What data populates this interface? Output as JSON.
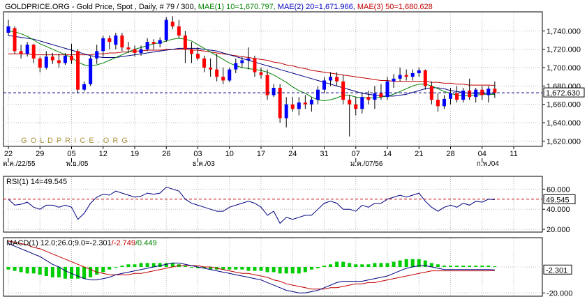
{
  "header": {
    "title_parts": [
      {
        "text": "GOLDPRICE.ORG - Gold Price, Spot , Daily, # 79 / 300,",
        "color": "#000000"
      },
      {
        "text": " MAE(1) 10=1,670.797,",
        "color": "#008000"
      },
      {
        "text": " MAE(2) 20=1,671.966,",
        "color": "#0000c0"
      },
      {
        "text": " MAE(3) 50=1,680.628",
        "color": "#c00000"
      }
    ]
  },
  "watermark": "G O L D P R I C E . O R G",
  "colors": {
    "up": "#0000ff",
    "down": "#ff0000",
    "mae10": "#008000",
    "mae20": "#000080",
    "mae50": "#c00000",
    "current_line": "#000080",
    "rsi_line": "#000080",
    "rsi_ref": "#c00000",
    "macd_line": "#000080",
    "signal_line": "#c00000",
    "hist": "#00cc00",
    "grid": "#b8b8b8"
  },
  "chart_data": [
    {
      "type": "candlestick",
      "title": "GOLDPRICE.ORG - Gold Price, Spot , Daily, # 79 / 300",
      "ylim": [
        1615,
        1760
      ],
      "yticks": [
        1620,
        1640,
        1660,
        1680,
        1700,
        1720,
        1740
      ],
      "ytick_labels": [
        "1,620.000",
        "1,640.000",
        "1,660.000",
        "1,680.000",
        "1,700.000",
        "1,720.000",
        "1,740.000"
      ],
      "current_value": 1672.63,
      "current_label": "1,672.630",
      "x_tick_labels": [
        "22",
        "29",
        "05",
        "12",
        "19",
        "26",
        "03",
        "10",
        "17",
        "24",
        "31",
        "07",
        "14",
        "21",
        "28",
        "04",
        "11"
      ],
      "x_tick_index": [
        0,
        5,
        10,
        15,
        20,
        25,
        30,
        35,
        40,
        45,
        50,
        55,
        60,
        65,
        70,
        75,
        80
      ],
      "period_labels": [
        "ต.ค./22/55",
        "พ.ย./05",
        "ธ.ค./03",
        "ม.ค./07/56",
        "ก.พ./04"
      ],
      "period_index": [
        0,
        10,
        30,
        55,
        75
      ],
      "candles": [
        {
          "o": 1738,
          "h": 1752,
          "l": 1735,
          "c": 1745
        },
        {
          "o": 1743,
          "h": 1745,
          "l": 1715,
          "c": 1718
        },
        {
          "o": 1718,
          "h": 1725,
          "l": 1710,
          "c": 1715
        },
        {
          "o": 1715,
          "h": 1728,
          "l": 1712,
          "c": 1725
        },
        {
          "o": 1725,
          "h": 1726,
          "l": 1705,
          "c": 1710
        },
        {
          "o": 1710,
          "h": 1712,
          "l": 1695,
          "c": 1700
        },
        {
          "o": 1700,
          "h": 1718,
          "l": 1698,
          "c": 1712
        },
        {
          "o": 1712,
          "h": 1716,
          "l": 1704,
          "c": 1708
        },
        {
          "o": 1708,
          "h": 1715,
          "l": 1700,
          "c": 1705
        },
        {
          "o": 1705,
          "h": 1716,
          "l": 1703,
          "c": 1713
        },
        {
          "o": 1713,
          "h": 1726,
          "l": 1704,
          "c": 1708
        },
        {
          "o": 1718,
          "h": 1720,
          "l": 1672,
          "c": 1676
        },
        {
          "o": 1676,
          "h": 1685,
          "l": 1674,
          "c": 1682
        },
        {
          "o": 1682,
          "h": 1713,
          "l": 1680,
          "c": 1710
        },
        {
          "o": 1710,
          "h": 1725,
          "l": 1704,
          "c": 1718
        },
        {
          "o": 1718,
          "h": 1735,
          "l": 1712,
          "c": 1732
        },
        {
          "o": 1732,
          "h": 1735,
          "l": 1720,
          "c": 1728
        },
        {
          "o": 1725,
          "h": 1738,
          "l": 1720,
          "c": 1735
        },
        {
          "o": 1735,
          "h": 1738,
          "l": 1718,
          "c": 1722
        },
        {
          "o": 1722,
          "h": 1728,
          "l": 1716,
          "c": 1720
        },
        {
          "o": 1720,
          "h": 1724,
          "l": 1712,
          "c": 1716
        },
        {
          "o": 1716,
          "h": 1724,
          "l": 1713,
          "c": 1720
        },
        {
          "o": 1720,
          "h": 1732,
          "l": 1718,
          "c": 1728
        },
        {
          "o": 1728,
          "h": 1731,
          "l": 1720,
          "c": 1726
        },
        {
          "o": 1726,
          "h": 1733,
          "l": 1722,
          "c": 1730
        },
        {
          "o": 1730,
          "h": 1755,
          "l": 1728,
          "c": 1752
        },
        {
          "o": 1750,
          "h": 1756,
          "l": 1742,
          "c": 1745
        },
        {
          "o": 1745,
          "h": 1752,
          "l": 1732,
          "c": 1735
        },
        {
          "o": 1735,
          "h": 1740,
          "l": 1705,
          "c": 1720
        },
        {
          "o": 1720,
          "h": 1728,
          "l": 1705,
          "c": 1715
        },
        {
          "o": 1715,
          "h": 1722,
          "l": 1708,
          "c": 1710
        },
        {
          "o": 1710,
          "h": 1713,
          "l": 1695,
          "c": 1700
        },
        {
          "o": 1700,
          "h": 1710,
          "l": 1690,
          "c": 1698
        },
        {
          "o": 1698,
          "h": 1715,
          "l": 1685,
          "c": 1690
        },
        {
          "o": 1690,
          "h": 1700,
          "l": 1682,
          "c": 1686
        },
        {
          "o": 1686,
          "h": 1700,
          "l": 1684,
          "c": 1698
        },
        {
          "o": 1698,
          "h": 1710,
          "l": 1694,
          "c": 1705
        },
        {
          "o": 1705,
          "h": 1712,
          "l": 1700,
          "c": 1708
        },
        {
          "o": 1708,
          "h": 1722,
          "l": 1698,
          "c": 1710
        },
        {
          "o": 1710,
          "h": 1713,
          "l": 1690,
          "c": 1695
        },
        {
          "o": 1695,
          "h": 1700,
          "l": 1688,
          "c": 1692
        },
        {
          "o": 1692,
          "h": 1698,
          "l": 1665,
          "c": 1670
        },
        {
          "o": 1670,
          "h": 1682,
          "l": 1668,
          "c": 1678
        },
        {
          "o": 1678,
          "h": 1682,
          "l": 1640,
          "c": 1645
        },
        {
          "o": 1645,
          "h": 1668,
          "l": 1635,
          "c": 1660
        },
        {
          "o": 1660,
          "h": 1668,
          "l": 1652,
          "c": 1655
        },
        {
          "o": 1655,
          "h": 1668,
          "l": 1648,
          "c": 1662
        },
        {
          "o": 1662,
          "h": 1670,
          "l": 1655,
          "c": 1660
        },
        {
          "o": 1660,
          "h": 1668,
          "l": 1652,
          "c": 1665
        },
        {
          "o": 1665,
          "h": 1680,
          "l": 1660,
          "c": 1676
        },
        {
          "o": 1676,
          "h": 1690,
          "l": 1672,
          "c": 1686
        },
        {
          "o": 1686,
          "h": 1695,
          "l": 1680,
          "c": 1690
        },
        {
          "o": 1690,
          "h": 1695,
          "l": 1680,
          "c": 1685
        },
        {
          "o": 1685,
          "h": 1692,
          "l": 1660,
          "c": 1665
        },
        {
          "o": 1665,
          "h": 1670,
          "l": 1625,
          "c": 1660
        },
        {
          "o": 1660,
          "h": 1668,
          "l": 1648,
          "c": 1655
        },
        {
          "o": 1655,
          "h": 1672,
          "l": 1650,
          "c": 1668
        },
        {
          "o": 1668,
          "h": 1675,
          "l": 1660,
          "c": 1665
        },
        {
          "o": 1665,
          "h": 1680,
          "l": 1655,
          "c": 1672
        },
        {
          "o": 1672,
          "h": 1682,
          "l": 1665,
          "c": 1668
        },
        {
          "o": 1668,
          "h": 1690,
          "l": 1665,
          "c": 1685
        },
        {
          "o": 1685,
          "h": 1693,
          "l": 1678,
          "c": 1688
        },
        {
          "o": 1688,
          "h": 1700,
          "l": 1685,
          "c": 1692
        },
        {
          "o": 1692,
          "h": 1698,
          "l": 1686,
          "c": 1690
        },
        {
          "o": 1690,
          "h": 1698,
          "l": 1686,
          "c": 1694
        },
        {
          "o": 1694,
          "h": 1700,
          "l": 1690,
          "c": 1697
        },
        {
          "o": 1697,
          "h": 1698,
          "l": 1676,
          "c": 1680
        },
        {
          "o": 1680,
          "h": 1685,
          "l": 1660,
          "c": 1665
        },
        {
          "o": 1665,
          "h": 1672,
          "l": 1652,
          "c": 1658
        },
        {
          "o": 1658,
          "h": 1670,
          "l": 1655,
          "c": 1666
        },
        {
          "o": 1666,
          "h": 1678,
          "l": 1660,
          "c": 1672
        },
        {
          "o": 1672,
          "h": 1680,
          "l": 1662,
          "c": 1665
        },
        {
          "o": 1665,
          "h": 1678,
          "l": 1662,
          "c": 1675
        },
        {
          "o": 1675,
          "h": 1688,
          "l": 1665,
          "c": 1668
        },
        {
          "o": 1668,
          "h": 1678,
          "l": 1662,
          "c": 1676
        },
        {
          "o": 1676,
          "h": 1680,
          "l": 1665,
          "c": 1670
        },
        {
          "o": 1670,
          "h": 1680,
          "l": 1662,
          "c": 1677
        },
        {
          "o": 1677,
          "h": 1685,
          "l": 1667,
          "c": 1672.6
        }
      ],
      "mae10": [
        1740,
        1739,
        1737,
        1734,
        1730,
        1726,
        1723,
        1720,
        1717,
        1714,
        1711,
        1706,
        1703,
        1702,
        1703,
        1705,
        1708,
        1711,
        1714,
        1717,
        1720,
        1722,
        1724,
        1726,
        1727,
        1729,
        1731,
        1732,
        1731,
        1729,
        1725,
        1721,
        1717,
        1713,
        1709,
        1705,
        1702,
        1700,
        1699,
        1698,
        1697,
        1695,
        1692,
        1688,
        1684,
        1679,
        1675,
        1672,
        1668,
        1665,
        1664,
        1665,
        1667,
        1670,
        1670,
        1668,
        1667,
        1667,
        1667,
        1668,
        1669,
        1671,
        1674,
        1677,
        1680,
        1682,
        1682,
        1680,
        1677,
        1674,
        1672,
        1670,
        1669,
        1670,
        1670,
        1671,
        1671,
        1670.8
      ],
      "mae20": [
        1735,
        1734,
        1733,
        1732,
        1731,
        1729,
        1727,
        1725,
        1723,
        1721,
        1719,
        1717,
        1715,
        1713,
        1712,
        1711,
        1711,
        1711,
        1712,
        1713,
        1714,
        1715,
        1716,
        1717,
        1718,
        1719,
        1720,
        1721,
        1721,
        1721,
        1721,
        1720,
        1719,
        1718,
        1716,
        1714,
        1712,
        1710,
        1708,
        1706,
        1704,
        1702,
        1700,
        1698,
        1696,
        1694,
        1692,
        1690,
        1688,
        1686,
        1684,
        1682,
        1680,
        1678,
        1676,
        1674,
        1672,
        1671,
        1670,
        1669,
        1669,
        1669,
        1670,
        1671,
        1673,
        1675,
        1677,
        1678,
        1678,
        1677,
        1675,
        1674,
        1673,
        1672,
        1672,
        1672,
        1672,
        1671.97
      ],
      "mae50": [
        1715,
        1715,
        1715,
        1715,
        1714,
        1714,
        1714,
        1714,
        1714,
        1714,
        1714,
        1714,
        1714,
        1714,
        1715,
        1715,
        1716,
        1716,
        1717,
        1717,
        1718,
        1718,
        1719,
        1719,
        1719,
        1720,
        1720,
        1720,
        1720,
        1719,
        1719,
        1718,
        1717,
        1716,
        1715,
        1714,
        1713,
        1712,
        1711,
        1710,
        1709,
        1708,
        1706,
        1705,
        1703,
        1702,
        1700,
        1699,
        1697,
        1696,
        1695,
        1694,
        1693,
        1692,
        1691,
        1690,
        1689,
        1688,
        1687,
        1686,
        1686,
        1685,
        1685,
        1685,
        1685,
        1685,
        1685,
        1684,
        1684,
        1683,
        1683,
        1682,
        1682,
        1681,
        1681,
        1681,
        1681,
        1680.63
      ]
    },
    {
      "type": "line",
      "title": "RSI(1) 14=49.545",
      "ylim": [
        18,
        72
      ],
      "yticks": [
        20,
        40,
        60
      ],
      "ytick_labels": [
        "20.000",
        "40.000",
        "60.000"
      ],
      "reference_value": 50,
      "current_value": 49.545,
      "current_label": "49.545",
      "values": [
        50,
        44,
        45,
        47,
        42,
        40,
        44,
        44,
        42,
        44,
        42,
        30,
        36,
        46,
        52,
        55,
        54,
        58,
        56,
        54,
        52,
        53,
        56,
        55,
        56,
        62,
        60,
        58,
        50,
        46,
        44,
        42,
        40,
        38,
        38,
        42,
        44,
        46,
        48,
        46,
        42,
        34,
        38,
        26,
        32,
        30,
        32,
        34,
        34,
        40,
        46,
        48,
        46,
        40,
        40,
        38,
        44,
        42,
        46,
        46,
        50,
        52,
        54,
        52,
        54,
        56,
        48,
        42,
        38,
        42,
        44,
        42,
        46,
        44,
        48,
        47,
        50,
        49.5
      ]
    },
    {
      "type": "line",
      "title": "MACD(1) 12.0;26.0;9.0=-2.301/-2.749/0.449",
      "ylim": [
        -22,
        22
      ],
      "yticks": [
        -20
      ],
      "ytick_labels": [
        "-20.000"
      ],
      "current_value": -2.301,
      "current_label": "-2.301",
      "series": [
        {
          "name": "MACD",
          "values": [
            18,
            16,
            14,
            12,
            10,
            8,
            5,
            2,
            0,
            -3,
            -5,
            -7,
            -9,
            -10,
            -10,
            -9,
            -8,
            -6,
            -5,
            -4,
            -3,
            -2,
            -1,
            0,
            1,
            2,
            3,
            3,
            2,
            1,
            0,
            -1,
            -2,
            -3,
            -4,
            -5,
            -6,
            -7,
            -8,
            -9,
            -10,
            -12,
            -14,
            -16,
            -18,
            -19,
            -20,
            -20,
            -19,
            -18,
            -16,
            -14,
            -12,
            -11,
            -11,
            -11,
            -11,
            -10,
            -9,
            -8,
            -7,
            -5,
            -3,
            -1,
            0,
            1,
            1,
            0,
            -1,
            -2,
            -2,
            -2,
            -2,
            -2,
            -2,
            -2,
            -2,
            -2.3
          ]
        },
        {
          "name": "Signal",
          "values": [
            20,
            19,
            18,
            17,
            15,
            14,
            12,
            10,
            8,
            6,
            4,
            2,
            0,
            -2,
            -4,
            -5,
            -6,
            -6,
            -6,
            -6,
            -5,
            -5,
            -4,
            -3,
            -2,
            -1,
            0,
            1,
            1,
            1,
            1,
            0,
            0,
            -1,
            -2,
            -3,
            -4,
            -5,
            -5,
            -6,
            -7,
            -8,
            -10,
            -11,
            -13,
            -14,
            -15,
            -16,
            -17,
            -17,
            -17,
            -16,
            -16,
            -15,
            -14,
            -13,
            -13,
            -12,
            -12,
            -11,
            -10,
            -9,
            -8,
            -7,
            -6,
            -5,
            -4,
            -3,
            -3,
            -3,
            -3,
            -3,
            -3,
            -3,
            -3,
            -3,
            -3,
            -2.75
          ]
        },
        {
          "name": "Histogram",
          "values": [
            -2,
            -3,
            -4,
            -5,
            -5,
            -6,
            -7,
            -8,
            -8,
            -9,
            -9,
            -9,
            -9,
            -8,
            -6,
            -4,
            -2,
            0,
            1,
            2,
            2,
            3,
            3,
            3,
            3,
            3,
            3,
            2,
            1,
            0,
            -1,
            -1,
            -2,
            -2,
            -2,
            -2,
            -2,
            -2,
            -3,
            -3,
            -3,
            -4,
            -4,
            -5,
            -5,
            -5,
            -5,
            -4,
            -2,
            -1,
            1,
            2,
            4,
            4,
            3,
            2,
            2,
            2,
            3,
            3,
            3,
            4,
            5,
            6,
            6,
            6,
            5,
            3,
            2,
            1,
            1,
            1,
            1,
            1,
            1,
            1,
            1,
            0.45
          ]
        }
      ]
    }
  ]
}
